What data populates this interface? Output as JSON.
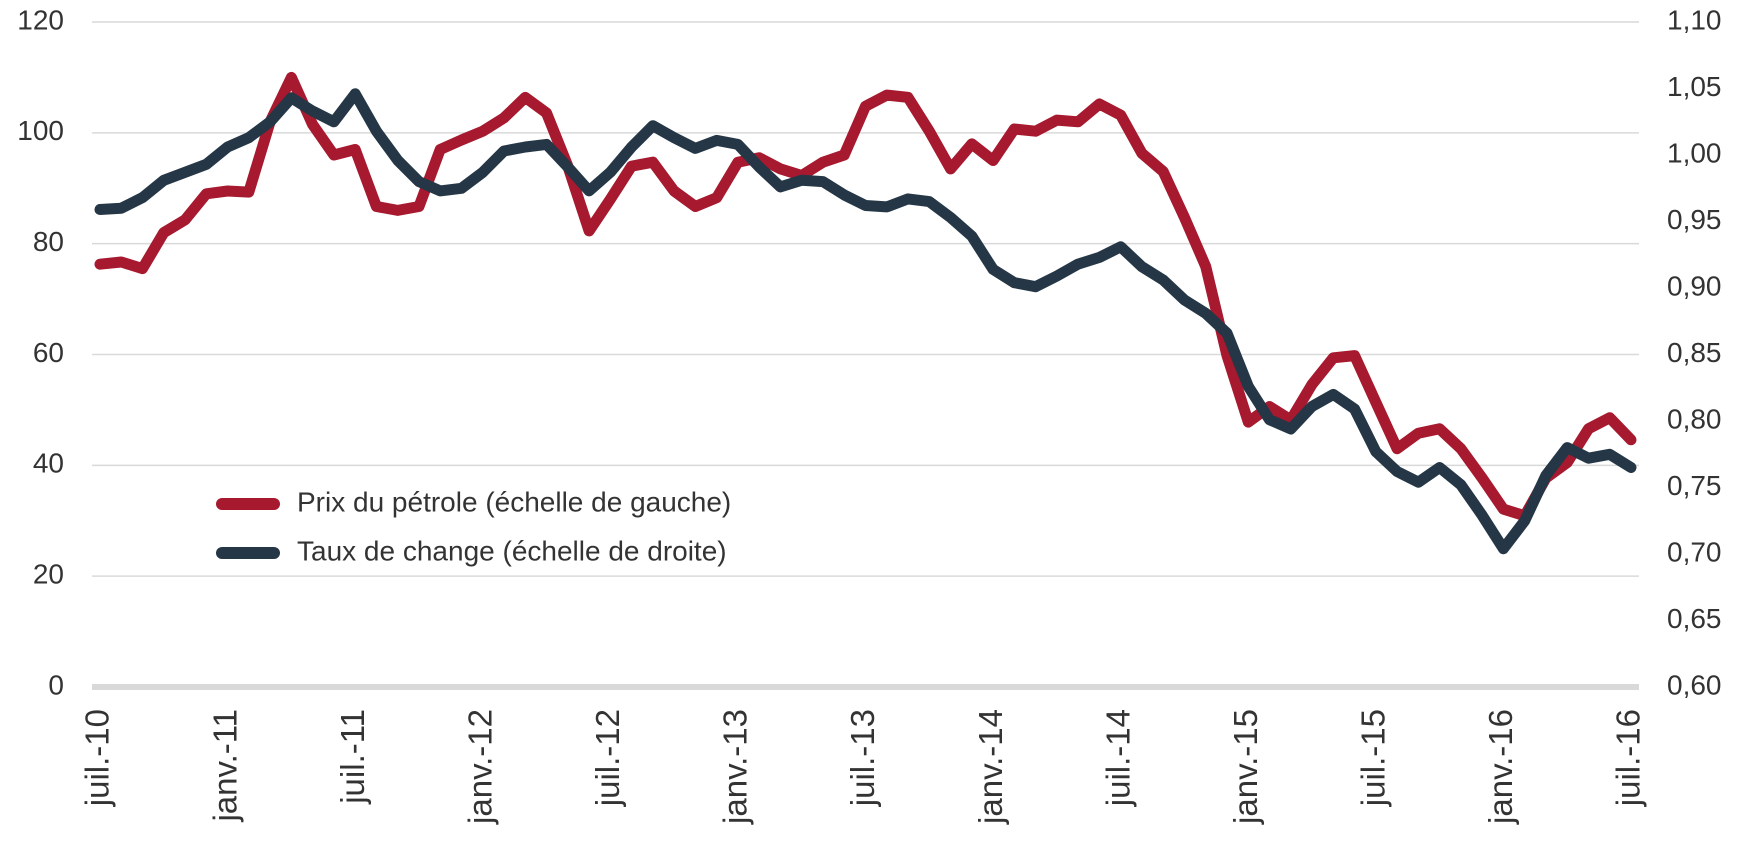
{
  "chart_data": {
    "type": "line",
    "categories": [
      "juil.-10",
      null,
      null,
      null,
      null,
      null,
      "janv.-11",
      null,
      null,
      null,
      null,
      null,
      "juil.-11",
      null,
      null,
      null,
      null,
      null,
      "janv.-12",
      null,
      null,
      null,
      null,
      null,
      "juil.-12",
      null,
      null,
      null,
      null,
      null,
      "janv.-13",
      null,
      null,
      null,
      null,
      null,
      "juil.-13",
      null,
      null,
      null,
      null,
      null,
      "janv.-14",
      null,
      null,
      null,
      null,
      null,
      "juil.-14",
      null,
      null,
      null,
      null,
      null,
      "janv.-15",
      null,
      null,
      null,
      null,
      null,
      "juil.-15",
      null,
      null,
      null,
      null,
      null,
      "janv.-16",
      null,
      null,
      null,
      null,
      null,
      "juil.-16"
    ],
    "series": [
      {
        "name": "Prix du pétrole (échelle de gauche)",
        "color": "#a6192e",
        "axis": "y",
        "values": [
          76.3,
          76.7,
          75.5,
          82,
          84.3,
          89,
          89.5,
          89.3,
          102,
          110,
          101.5,
          96,
          97,
          86.7,
          86,
          86.7,
          97,
          98.7,
          100.3,
          102.7,
          106.4,
          103.6,
          94,
          82.3,
          88,
          94,
          94.7,
          89.5,
          86.7,
          88.3,
          94.7,
          95.5,
          93.5,
          92.3,
          94.7,
          96,
          104.8,
          106.8,
          106.4,
          100.3,
          93.5,
          98,
          95,
          100.7,
          100.3,
          102.3,
          102,
          105.2,
          103.2,
          96.3,
          93,
          84.7,
          75.9,
          59.8,
          47.8,
          50.6,
          48.2,
          54.6,
          59.4,
          59.8,
          51.4,
          43,
          45.8,
          46.6,
          43,
          37.7,
          32.1,
          30.9,
          37.7,
          40.5,
          46.6,
          48.6,
          44.6
        ]
      },
      {
        "name": "Taux de change (échelle de droite)",
        "color": "#253746",
        "axis": "y2",
        "values": [
          0.959,
          0.96,
          0.968,
          0.981,
          0.987,
          0.993,
          1.006,
          1.013,
          1.025,
          1.043,
          1.033,
          1.025,
          1.046,
          1.018,
          0.996,
          0.98,
          0.973,
          0.975,
          0.987,
          1.003,
          1.006,
          1.008,
          0.991,
          0.973,
          0.987,
          1.006,
          1.022,
          1.013,
          1.005,
          1.011,
          1.008,
          0.991,
          0.976,
          0.981,
          0.98,
          0.97,
          0.962,
          0.961,
          0.967,
          0.965,
          0.953,
          0.939,
          0.914,
          0.904,
          0.901,
          0.909,
          0.918,
          0.923,
          0.931,
          0.916,
          0.906,
          0.891,
          0.881,
          0.866,
          0.826,
          0.801,
          0.794,
          0.811,
          0.82,
          0.809,
          0.777,
          0.762,
          0.754,
          0.765,
          0.752,
          0.729,
          0.704,
          0.725,
          0.759,
          0.78,
          0.772,
          0.775,
          0.765
        ]
      }
    ],
    "ylim": [
      0,
      120
    ],
    "yticks": [
      0,
      20,
      40,
      60,
      80,
      100,
      120
    ],
    "y2lim": [
      0.6,
      1.1
    ],
    "y2ticks": [
      {
        "value": 0.6,
        "label": "0,60"
      },
      {
        "value": 0.65,
        "label": "0,65"
      },
      {
        "value": 0.7,
        "label": "0,70"
      },
      {
        "value": 0.75,
        "label": "0,75"
      },
      {
        "value": 0.8,
        "label": "0,80"
      },
      {
        "value": 0.85,
        "label": "0,85"
      },
      {
        "value": 0.9,
        "label": "0,90"
      },
      {
        "value": 0.95,
        "label": "0,95"
      },
      {
        "value": 1.0,
        "label": "1,00"
      },
      {
        "value": 1.05,
        "label": "1,05"
      },
      {
        "value": 1.1,
        "label": "1,10"
      }
    ],
    "grid": true
  }
}
